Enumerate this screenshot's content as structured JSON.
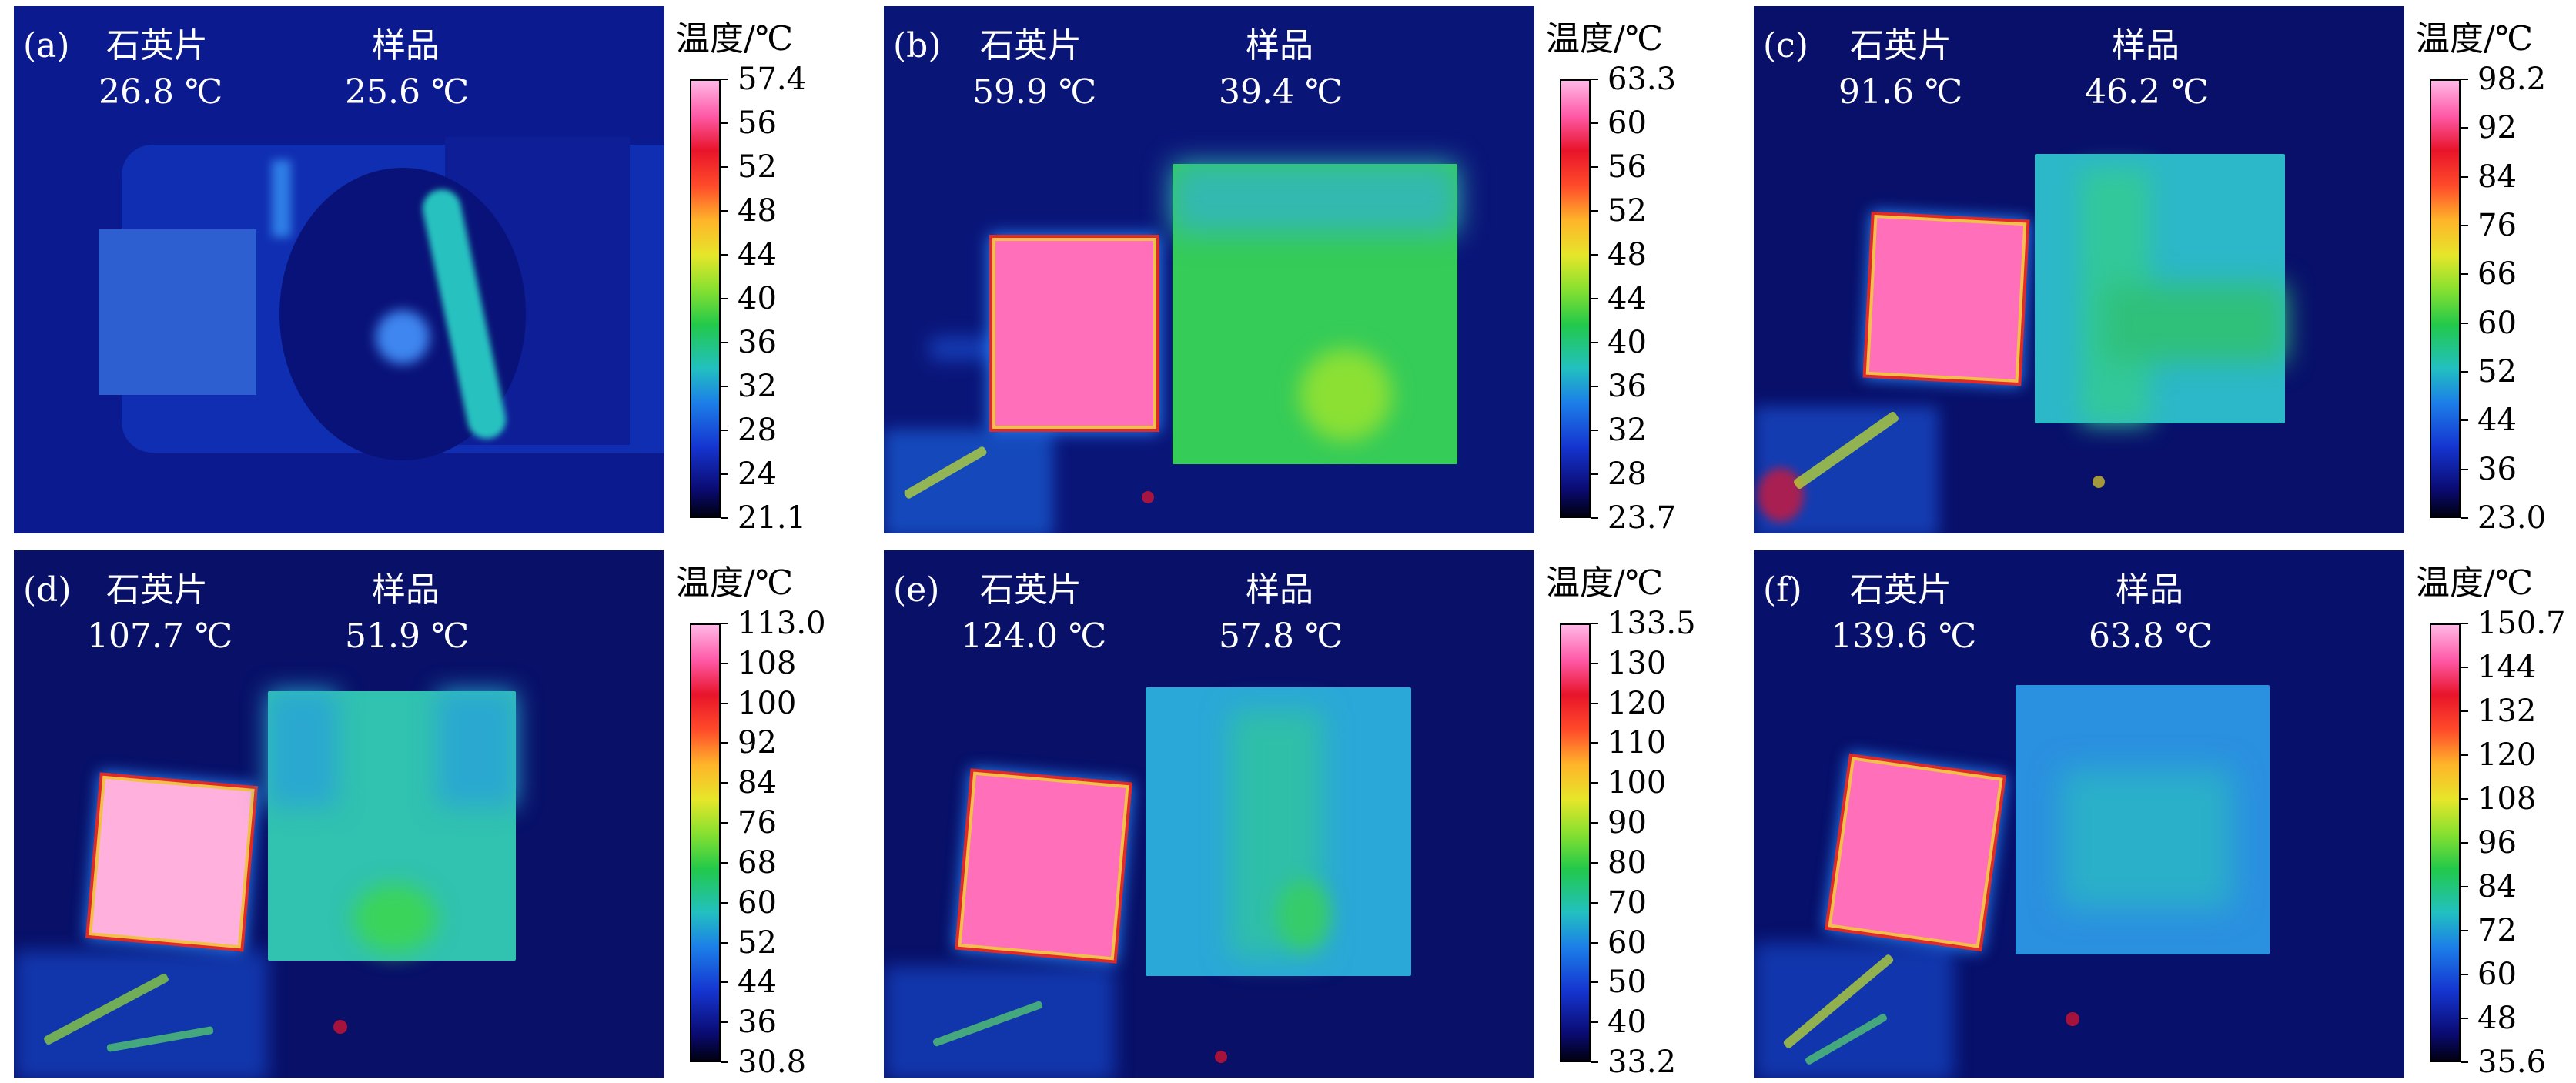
{
  "colorbar_title": "温度/℃",
  "panels": [
    {
      "tag": "(a)",
      "quartz_label": "石英片",
      "sample_label": "样品",
      "quartz_temp": "26.8 ℃",
      "sample_temp": "25.6 ℃",
      "ticks": [
        "57.4",
        "56",
        "52",
        "48",
        "44",
        "40",
        "36",
        "32",
        "28",
        "24",
        "21.1"
      ]
    },
    {
      "tag": "(b)",
      "quartz_label": "石英片",
      "sample_label": "样品",
      "quartz_temp": "59.9 ℃",
      "sample_temp": "39.4 ℃",
      "ticks": [
        "63.3",
        "60",
        "56",
        "52",
        "48",
        "44",
        "40",
        "36",
        "32",
        "28",
        "23.7"
      ]
    },
    {
      "tag": "(c)",
      "quartz_label": "石英片",
      "sample_label": "样品",
      "quartz_temp": "91.6 ℃",
      "sample_temp": "46.2 ℃",
      "ticks": [
        "98.2",
        "92",
        "84",
        "76",
        "66",
        "60",
        "52",
        "44",
        "36",
        "23.0"
      ]
    },
    {
      "tag": "(d)",
      "quartz_label": "石英片",
      "sample_label": "样品",
      "quartz_temp": "107.7 ℃",
      "sample_temp": "51.9 ℃",
      "ticks": [
        "113.0",
        "108",
        "100",
        "92",
        "84",
        "76",
        "68",
        "60",
        "52",
        "44",
        "36",
        "30.8"
      ]
    },
    {
      "tag": "(e)",
      "quartz_label": "石英片",
      "sample_label": "样品",
      "quartz_temp": "124.0 ℃",
      "sample_temp": "57.8 ℃",
      "ticks": [
        "133.5",
        "130",
        "120",
        "110",
        "100",
        "90",
        "80",
        "70",
        "60",
        "50",
        "40",
        "33.2"
      ]
    },
    {
      "tag": "(f)",
      "quartz_label": "石英片",
      "sample_label": "样品",
      "quartz_temp": "139.6 ℃",
      "sample_temp": "63.8 ℃",
      "ticks": [
        "150.7",
        "144",
        "132",
        "120",
        "108",
        "96",
        "84",
        "72",
        "60",
        "48",
        "35.6"
      ]
    }
  ]
}
